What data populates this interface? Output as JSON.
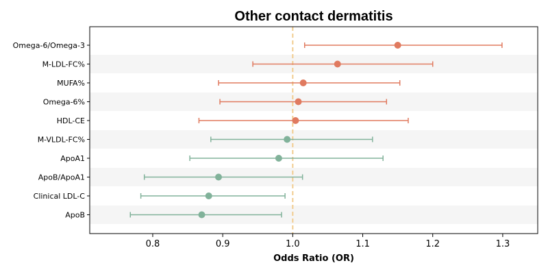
{
  "chart_data": {
    "type": "forest",
    "title": "Other contact dermatitis",
    "xlabel": "Odds Ratio (OR)",
    "ylabel": "",
    "xlim": [
      0.71,
      1.35
    ],
    "xticks": [
      0.8,
      0.9,
      1.0,
      1.1,
      1.2,
      1.3
    ],
    "xtick_labels": [
      "0.8",
      "0.9",
      "1.0",
      "1.1",
      "1.2",
      "1.3"
    ],
    "reference_line": 1.0,
    "colors": {
      "increased_risk": "#e07a5f",
      "decreased_risk": "#81b29a",
      "reference_line": "#f2cc8f",
      "band": "#f5f5f5"
    },
    "rows": [
      {
        "label": "Omega-6/Omega-3",
        "or": 1.15,
        "lower": 1.017,
        "upper": 1.299
      },
      {
        "label": "M-LDL-FC%",
        "or": 1.064,
        "lower": 0.943,
        "upper": 1.2
      },
      {
        "label": "MUFA%",
        "or": 1.015,
        "lower": 0.894,
        "upper": 1.153
      },
      {
        "label": "Omega-6%",
        "or": 1.008,
        "lower": 0.896,
        "upper": 1.134
      },
      {
        "label": "HDL-CE",
        "or": 1.004,
        "lower": 0.866,
        "upper": 1.165
      },
      {
        "label": "M-VLDL-FC%",
        "or": 0.992,
        "lower": 0.883,
        "upper": 1.114
      },
      {
        "label": "ApoA1",
        "or": 0.98,
        "lower": 0.853,
        "upper": 1.129
      },
      {
        "label": "ApoB/ApoA1",
        "or": 0.894,
        "lower": 0.788,
        "upper": 1.014
      },
      {
        "label": "Clinical LDL-C",
        "or": 0.88,
        "lower": 0.783,
        "upper": 0.989
      },
      {
        "label": "ApoB",
        "or": 0.87,
        "lower": 0.768,
        "upper": 0.984
      }
    ]
  }
}
